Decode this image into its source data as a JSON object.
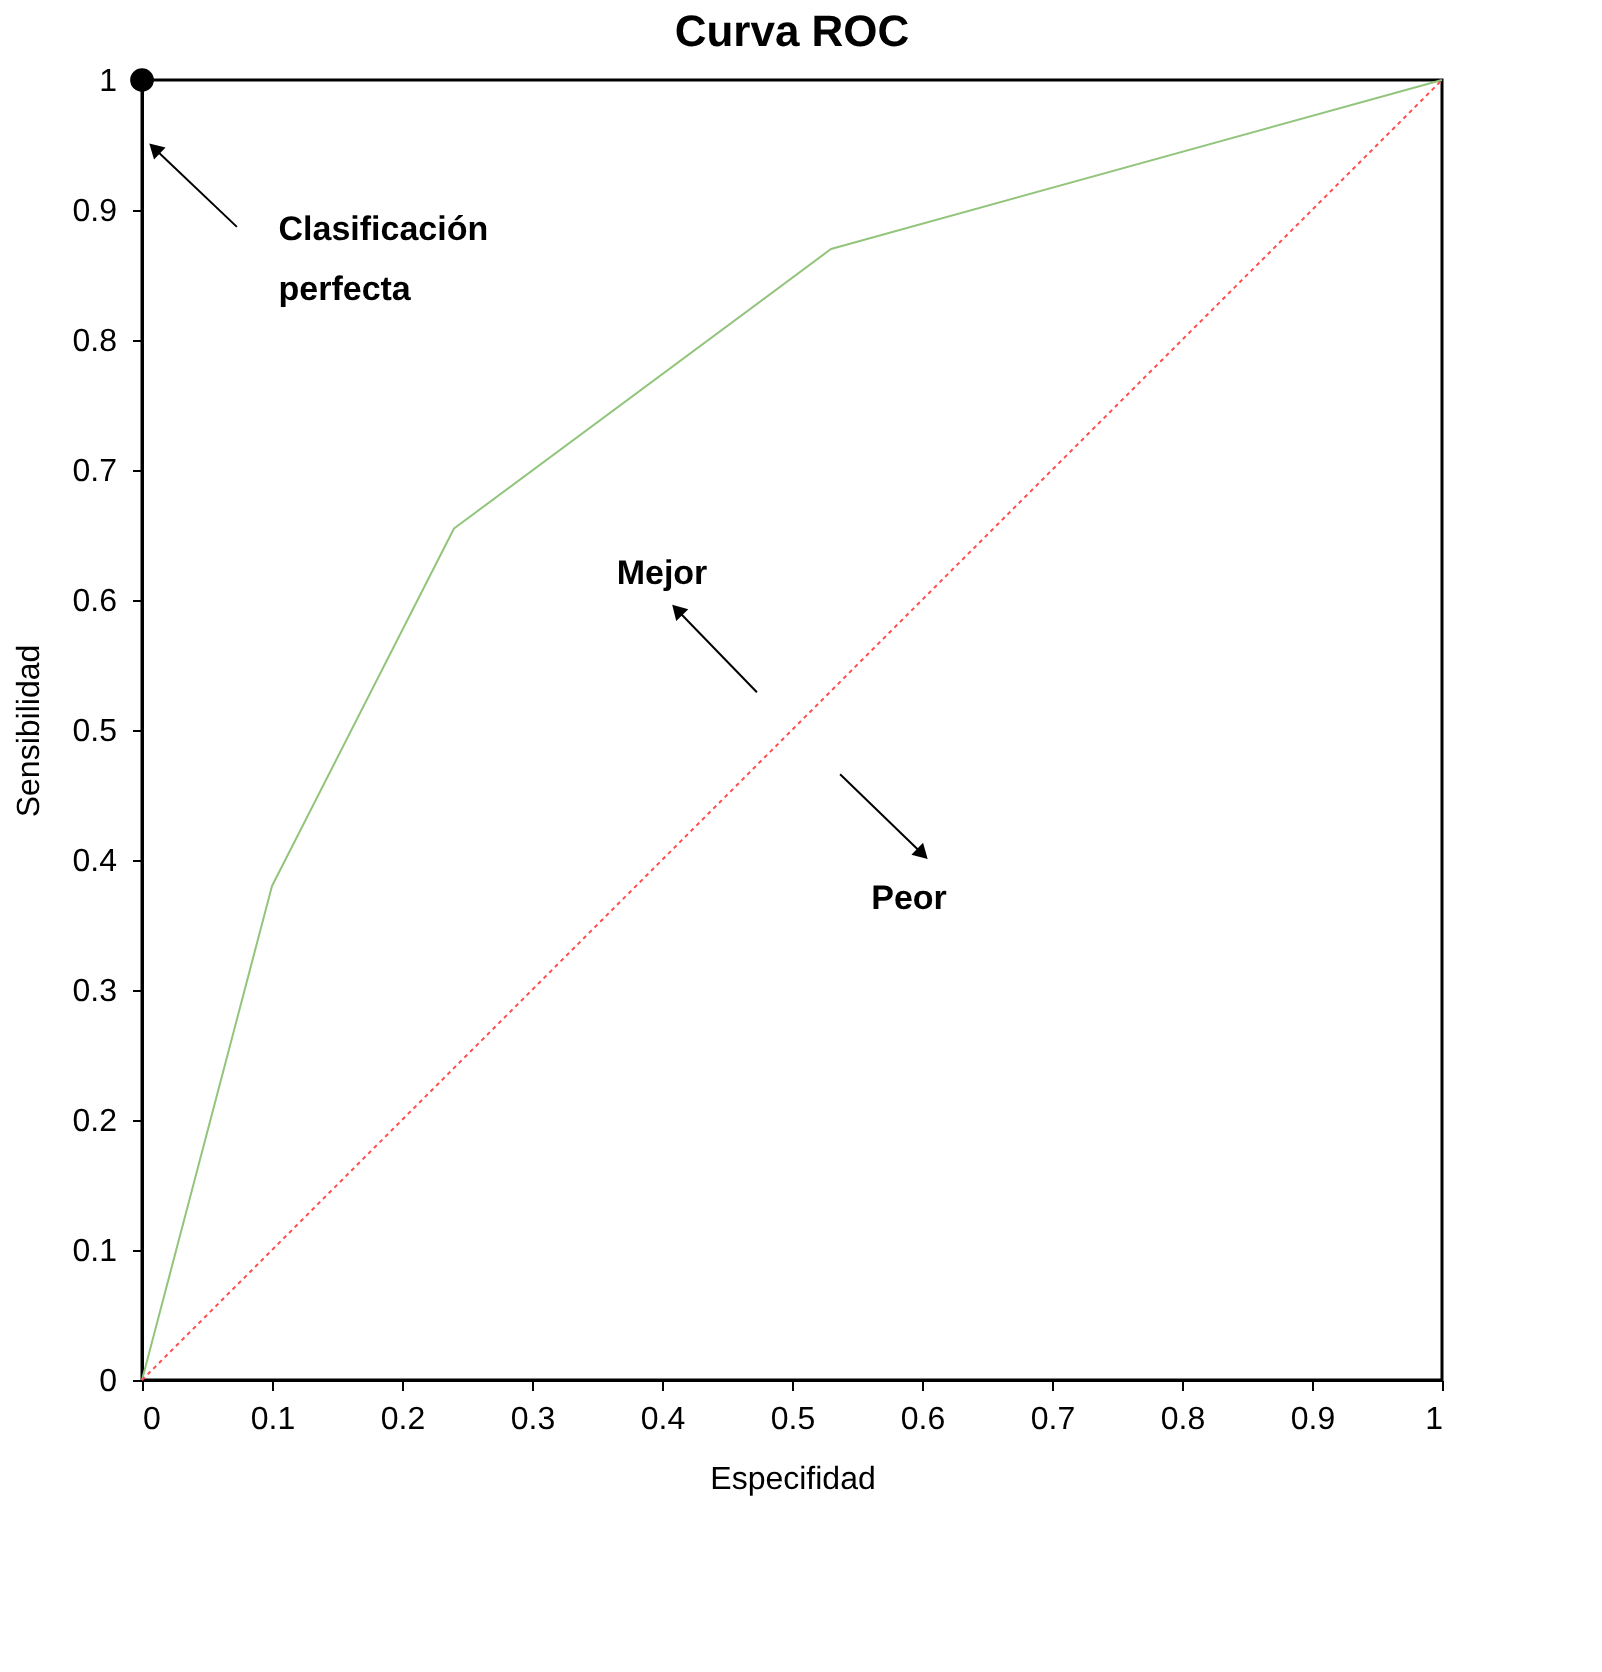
{
  "chart_data": {
    "type": "line",
    "title": "Curva ROC",
    "xlabel": "Especifidad",
    "ylabel": "Sensibilidad",
    "xlim": [
      0,
      1
    ],
    "ylim": [
      0,
      1
    ],
    "xticks": [
      0,
      0.1,
      0.2,
      0.3,
      0.4,
      0.5,
      0.6,
      0.7,
      0.8,
      0.9,
      1
    ],
    "yticks": [
      0,
      0.1,
      0.2,
      0.3,
      0.4,
      0.5,
      0.6,
      0.7,
      0.8,
      0.9,
      1
    ],
    "grid": false,
    "series": [
      {
        "color": "#92c47c",
        "line_style": "solid",
        "marker": "none",
        "x": [
          0,
          0.1,
          0.24,
          0.53,
          1
        ],
        "values": [
          0,
          0.38,
          0.655,
          0.87,
          1
        ]
      },
      {
        "color": "#ff4d4d",
        "line_style": "dotted",
        "marker": "none",
        "x": [
          0,
          1
        ],
        "values": [
          0,
          1
        ]
      },
      {
        "type": "scatter",
        "color": "#000000",
        "marker": "circle",
        "x": [
          0
        ],
        "values": [
          1
        ]
      }
    ],
    "annotations": [
      "Clasificación perfecta",
      "Mejor",
      "Peor"
    ]
  }
}
